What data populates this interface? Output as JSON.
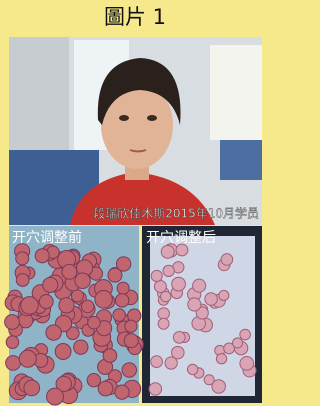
{
  "header": {
    "title": "圖片 1"
  },
  "photo": {
    "caption": "段瑞欣佳木斯2015年10月学员"
  },
  "panels": [
    {
      "label": "开穴调整前"
    },
    {
      "label": "开穴调整后"
    }
  ]
}
